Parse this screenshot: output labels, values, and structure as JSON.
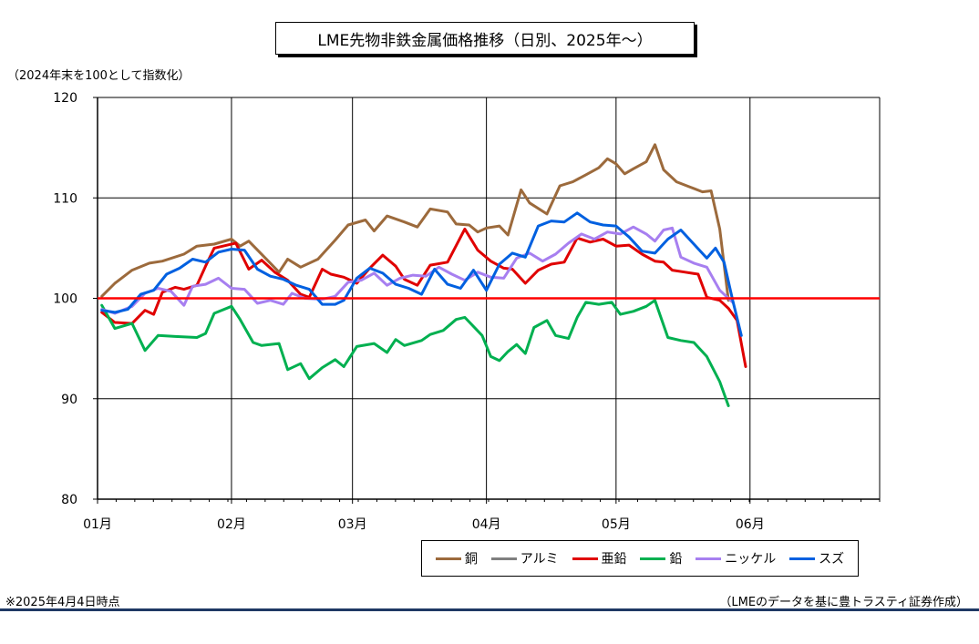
{
  "chart_data": {
    "type": "line",
    "title": "LME先物非鉄金属価格推移（日別、2025年～）",
    "ylabel": "（2024年末を100として指数化）",
    "xlabel": "",
    "ylim": [
      80,
      120
    ],
    "yticks": [
      "80",
      "90",
      "100",
      "110",
      "120"
    ],
    "x_range": [
      "2025-01-01",
      "2025-07-01"
    ],
    "x_ticks": [
      {
        "label": "01月",
        "date": "2025-01-01"
      },
      {
        "label": "02月",
        "date": "2025-02-01"
      },
      {
        "label": "03月",
        "date": "2025-03-01"
      },
      {
        "label": "04月",
        "date": "2025-04-01"
      },
      {
        "label": "05月",
        "date": "2025-05-01"
      },
      {
        "label": "06月",
        "date": "2025-06-01"
      }
    ],
    "grid": true,
    "legend_position": "bottom-right",
    "reference_line": {
      "value": 100,
      "color": "#ff0000"
    },
    "series": [
      {
        "name": "銅",
        "color": "#9c6a3c",
        "points": [
          [
            "2025-01-02",
            100.2
          ],
          [
            "2025-01-05",
            101.5
          ],
          [
            "2025-01-09",
            102.8
          ],
          [
            "2025-01-13",
            103.5
          ],
          [
            "2025-01-16",
            103.7
          ],
          [
            "2025-01-21",
            104.4
          ],
          [
            "2025-01-24",
            105.2
          ],
          [
            "2025-01-28",
            105.4
          ],
          [
            "2025-02-01",
            105.9
          ],
          [
            "2025-02-03",
            105.2
          ],
          [
            "2025-02-05",
            105.7
          ],
          [
            "2025-02-10",
            103.5
          ],
          [
            "2025-02-12",
            102.6
          ],
          [
            "2025-02-14",
            103.9
          ],
          [
            "2025-02-17",
            103.1
          ],
          [
            "2025-02-21",
            103.9
          ],
          [
            "2025-02-25",
            105.8
          ],
          [
            "2025-02-28",
            107.3
          ],
          [
            "2025-03-04",
            107.8
          ],
          [
            "2025-03-06",
            106.7
          ],
          [
            "2025-03-09",
            108.2
          ],
          [
            "2025-03-13",
            107.6
          ],
          [
            "2025-03-16",
            107.1
          ],
          [
            "2025-03-19",
            108.9
          ],
          [
            "2025-03-23",
            108.6
          ],
          [
            "2025-03-25",
            107.4
          ],
          [
            "2025-03-28",
            107.3
          ],
          [
            "2025-03-30",
            106.6
          ],
          [
            "2025-04-01",
            107.0
          ],
          [
            "2025-04-04",
            107.2
          ],
          [
            "2025-04-06",
            106.3
          ],
          [
            "2025-04-09",
            110.8
          ],
          [
            "2025-04-11",
            109.5
          ],
          [
            "2025-04-15",
            108.4
          ],
          [
            "2025-04-18",
            111.2
          ],
          [
            "2025-04-21",
            111.6
          ],
          [
            "2025-04-24",
            112.3
          ],
          [
            "2025-04-27",
            113.0
          ],
          [
            "2025-04-29",
            113.9
          ],
          [
            "2025-05-01",
            113.4
          ],
          [
            "2025-05-03",
            112.4
          ],
          [
            "2025-05-05",
            112.9
          ],
          [
            "2025-05-08",
            113.6
          ],
          [
            "2025-05-10",
            115.3
          ],
          [
            "2025-05-12",
            112.8
          ],
          [
            "2025-05-15",
            111.6
          ],
          [
            "2025-05-18",
            111.1
          ],
          [
            "2025-05-21",
            110.6
          ],
          [
            "2025-05-23",
            110.7
          ],
          [
            "2025-05-25",
            106.9
          ],
          [
            "2025-05-27",
            99.8
          ]
        ]
      },
      {
        "name": "アルミ",
        "color": "#7f7f7f",
        "points": []
      },
      {
        "name": "亜鉛",
        "color": "#e00000",
        "points": [
          [
            "2025-01-02",
            98.6
          ],
          [
            "2025-01-05",
            97.6
          ],
          [
            "2025-01-09",
            97.5
          ],
          [
            "2025-01-12",
            98.8
          ],
          [
            "2025-01-14",
            98.4
          ],
          [
            "2025-01-16",
            100.6
          ],
          [
            "2025-01-19",
            101.1
          ],
          [
            "2025-01-21",
            100.9
          ],
          [
            "2025-01-24",
            101.3
          ],
          [
            "2025-01-26",
            103.2
          ],
          [
            "2025-01-28",
            105.0
          ],
          [
            "2025-02-02",
            105.5
          ],
          [
            "2025-02-05",
            102.9
          ],
          [
            "2025-02-08",
            103.8
          ],
          [
            "2025-02-11",
            102.6
          ],
          [
            "2025-02-14",
            101.8
          ],
          [
            "2025-02-17",
            100.4
          ],
          [
            "2025-02-19",
            100.1
          ],
          [
            "2025-02-22",
            102.9
          ],
          [
            "2025-02-24",
            102.4
          ],
          [
            "2025-02-27",
            102.1
          ],
          [
            "2025-03-02",
            101.5
          ],
          [
            "2025-03-05",
            103.0
          ],
          [
            "2025-03-08",
            104.3
          ],
          [
            "2025-03-11",
            103.2
          ],
          [
            "2025-03-13",
            101.9
          ],
          [
            "2025-03-16",
            101.3
          ],
          [
            "2025-03-19",
            103.3
          ],
          [
            "2025-03-23",
            103.6
          ],
          [
            "2025-03-27",
            106.9
          ],
          [
            "2025-03-30",
            104.8
          ],
          [
            "2025-04-02",
            103.7
          ],
          [
            "2025-04-05",
            103.0
          ],
          [
            "2025-04-07",
            102.9
          ],
          [
            "2025-04-10",
            101.5
          ],
          [
            "2025-04-13",
            102.8
          ],
          [
            "2025-04-16",
            103.4
          ],
          [
            "2025-04-19",
            103.6
          ],
          [
            "2025-04-22",
            106.0
          ],
          [
            "2025-04-25",
            105.6
          ],
          [
            "2025-04-28",
            105.9
          ],
          [
            "2025-05-01",
            105.2
          ],
          [
            "2025-05-04",
            105.3
          ],
          [
            "2025-05-07",
            104.4
          ],
          [
            "2025-05-10",
            103.7
          ],
          [
            "2025-05-12",
            103.6
          ],
          [
            "2025-05-14",
            102.8
          ],
          [
            "2025-05-17",
            102.6
          ],
          [
            "2025-05-20",
            102.4
          ],
          [
            "2025-05-22",
            100.1
          ],
          [
            "2025-05-25",
            99.8
          ],
          [
            "2025-05-27",
            99.0
          ],
          [
            "2025-05-29",
            97.8
          ],
          [
            "2025-05-31",
            93.2
          ]
        ]
      },
      {
        "name": "鉛",
        "color": "#00b050",
        "points": [
          [
            "2025-01-02",
            99.3
          ],
          [
            "2025-01-05",
            97.0
          ],
          [
            "2025-01-09",
            97.5
          ],
          [
            "2025-01-12",
            94.8
          ],
          [
            "2025-01-15",
            96.3
          ],
          [
            "2025-01-19",
            96.2
          ],
          [
            "2025-01-24",
            96.1
          ],
          [
            "2025-01-26",
            96.5
          ],
          [
            "2025-01-28",
            98.5
          ],
          [
            "2025-02-01",
            99.2
          ],
          [
            "2025-02-03",
            97.9
          ],
          [
            "2025-02-06",
            95.6
          ],
          [
            "2025-02-08",
            95.3
          ],
          [
            "2025-02-12",
            95.5
          ],
          [
            "2025-02-14",
            92.9
          ],
          [
            "2025-02-17",
            93.5
          ],
          [
            "2025-02-19",
            92.0
          ],
          [
            "2025-02-22",
            93.1
          ],
          [
            "2025-02-25",
            93.9
          ],
          [
            "2025-02-27",
            93.2
          ],
          [
            "2025-03-02",
            95.2
          ],
          [
            "2025-03-06",
            95.5
          ],
          [
            "2025-03-09",
            94.6
          ],
          [
            "2025-03-11",
            95.9
          ],
          [
            "2025-03-13",
            95.3
          ],
          [
            "2025-03-17",
            95.8
          ],
          [
            "2025-03-19",
            96.4
          ],
          [
            "2025-03-22",
            96.8
          ],
          [
            "2025-03-25",
            97.9
          ],
          [
            "2025-03-27",
            98.1
          ],
          [
            "2025-03-31",
            96.3
          ],
          [
            "2025-04-02",
            94.2
          ],
          [
            "2025-04-04",
            93.8
          ],
          [
            "2025-04-06",
            94.7
          ],
          [
            "2025-04-08",
            95.4
          ],
          [
            "2025-04-10",
            94.5
          ],
          [
            "2025-04-12",
            97.1
          ],
          [
            "2025-04-15",
            97.8
          ],
          [
            "2025-04-17",
            96.3
          ],
          [
            "2025-04-20",
            96.0
          ],
          [
            "2025-04-22",
            98.1
          ],
          [
            "2025-04-24",
            99.6
          ],
          [
            "2025-04-27",
            99.4
          ],
          [
            "2025-04-30",
            99.6
          ],
          [
            "2025-05-02",
            98.4
          ],
          [
            "2025-05-05",
            98.7
          ],
          [
            "2025-05-08",
            99.2
          ],
          [
            "2025-05-10",
            99.8
          ],
          [
            "2025-05-13",
            96.1
          ],
          [
            "2025-05-16",
            95.8
          ],
          [
            "2025-05-19",
            95.6
          ],
          [
            "2025-05-22",
            94.2
          ],
          [
            "2025-05-25",
            91.7
          ],
          [
            "2025-05-27",
            89.3
          ]
        ]
      },
      {
        "name": "ニッケル",
        "color": "#a77ff0",
        "points": [
          [
            "2025-01-02",
            98.9
          ],
          [
            "2025-01-05",
            98.5
          ],
          [
            "2025-01-09",
            99.2
          ],
          [
            "2025-01-12",
            100.5
          ],
          [
            "2025-01-15",
            101.0
          ],
          [
            "2025-01-18",
            100.7
          ],
          [
            "2025-01-21",
            99.3
          ],
          [
            "2025-01-23",
            101.2
          ],
          [
            "2025-01-26",
            101.4
          ],
          [
            "2025-01-29",
            102.0
          ],
          [
            "2025-02-01",
            101.0
          ],
          [
            "2025-02-04",
            100.9
          ],
          [
            "2025-02-07",
            99.5
          ],
          [
            "2025-02-10",
            99.8
          ],
          [
            "2025-02-13",
            99.4
          ],
          [
            "2025-02-15",
            100.5
          ],
          [
            "2025-02-18",
            100.0
          ],
          [
            "2025-02-22",
            99.9
          ],
          [
            "2025-02-25",
            100.2
          ],
          [
            "2025-02-28",
            101.6
          ],
          [
            "2025-03-03",
            101.8
          ],
          [
            "2025-03-06",
            102.5
          ],
          [
            "2025-03-09",
            101.3
          ],
          [
            "2025-03-12",
            102.0
          ],
          [
            "2025-03-15",
            102.3
          ],
          [
            "2025-03-18",
            102.2
          ],
          [
            "2025-03-21",
            103.1
          ],
          [
            "2025-03-24",
            102.4
          ],
          [
            "2025-03-27",
            101.8
          ],
          [
            "2025-03-30",
            102.6
          ],
          [
            "2025-04-02",
            102.1
          ],
          [
            "2025-04-05",
            102.0
          ],
          [
            "2025-04-08",
            104.0
          ],
          [
            "2025-04-11",
            104.5
          ],
          [
            "2025-04-14",
            103.7
          ],
          [
            "2025-04-17",
            104.4
          ],
          [
            "2025-04-20",
            105.5
          ],
          [
            "2025-04-23",
            106.4
          ],
          [
            "2025-04-26",
            105.9
          ],
          [
            "2025-04-29",
            106.6
          ],
          [
            "2025-05-02",
            106.4
          ],
          [
            "2025-05-05",
            107.1
          ],
          [
            "2025-05-08",
            106.4
          ],
          [
            "2025-05-10",
            105.7
          ],
          [
            "2025-05-12",
            106.8
          ],
          [
            "2025-05-14",
            107.0
          ],
          [
            "2025-05-16",
            104.1
          ],
          [
            "2025-05-19",
            103.5
          ],
          [
            "2025-05-22",
            103.1
          ],
          [
            "2025-05-25",
            100.8
          ],
          [
            "2025-05-28",
            99.6
          ]
        ]
      },
      {
        "name": "スズ",
        "color": "#0060e0",
        "points": [
          [
            "2025-01-02",
            98.8
          ],
          [
            "2025-01-05",
            98.6
          ],
          [
            "2025-01-08",
            98.9
          ],
          [
            "2025-01-11",
            100.4
          ],
          [
            "2025-01-14",
            100.8
          ],
          [
            "2025-01-17",
            102.4
          ],
          [
            "2025-01-20",
            103.0
          ],
          [
            "2025-01-23",
            103.9
          ],
          [
            "2025-01-26",
            103.6
          ],
          [
            "2025-01-29",
            104.6
          ],
          [
            "2025-02-01",
            104.9
          ],
          [
            "2025-02-04",
            104.8
          ],
          [
            "2025-02-07",
            102.9
          ],
          [
            "2025-02-10",
            102.2
          ],
          [
            "2025-02-13",
            101.9
          ],
          [
            "2025-02-16",
            101.3
          ],
          [
            "2025-02-19",
            100.9
          ],
          [
            "2025-02-22",
            99.4
          ],
          [
            "2025-02-25",
            99.4
          ],
          [
            "2025-02-27",
            99.8
          ],
          [
            "2025-03-02",
            102.0
          ],
          [
            "2025-03-05",
            103.0
          ],
          [
            "2025-03-08",
            102.5
          ],
          [
            "2025-03-11",
            101.4
          ],
          [
            "2025-03-14",
            101.0
          ],
          [
            "2025-03-17",
            100.4
          ],
          [
            "2025-03-20",
            102.9
          ],
          [
            "2025-03-23",
            101.4
          ],
          [
            "2025-03-26",
            101.0
          ],
          [
            "2025-03-29",
            102.8
          ],
          [
            "2025-04-01",
            100.8
          ],
          [
            "2025-04-04",
            103.4
          ],
          [
            "2025-04-07",
            104.5
          ],
          [
            "2025-04-10",
            104.1
          ],
          [
            "2025-04-13",
            107.2
          ],
          [
            "2025-04-16",
            107.7
          ],
          [
            "2025-04-19",
            107.6
          ],
          [
            "2025-04-22",
            108.5
          ],
          [
            "2025-04-25",
            107.6
          ],
          [
            "2025-04-28",
            107.3
          ],
          [
            "2025-05-01",
            107.2
          ],
          [
            "2025-05-04",
            106.1
          ],
          [
            "2025-05-07",
            104.7
          ],
          [
            "2025-05-10",
            104.5
          ],
          [
            "2025-05-13",
            105.9
          ],
          [
            "2025-05-16",
            106.8
          ],
          [
            "2025-05-19",
            105.4
          ],
          [
            "2025-05-22",
            104.0
          ],
          [
            "2025-05-24",
            105.0
          ],
          [
            "2025-05-26",
            103.6
          ],
          [
            "2025-05-28",
            99.8
          ],
          [
            "2025-05-30",
            96.3
          ]
        ]
      }
    ]
  },
  "footnote_left": "※2025年4月4日時点",
  "footnote_right": "（LMEのデータを基に豊トラスティ証券作成）"
}
